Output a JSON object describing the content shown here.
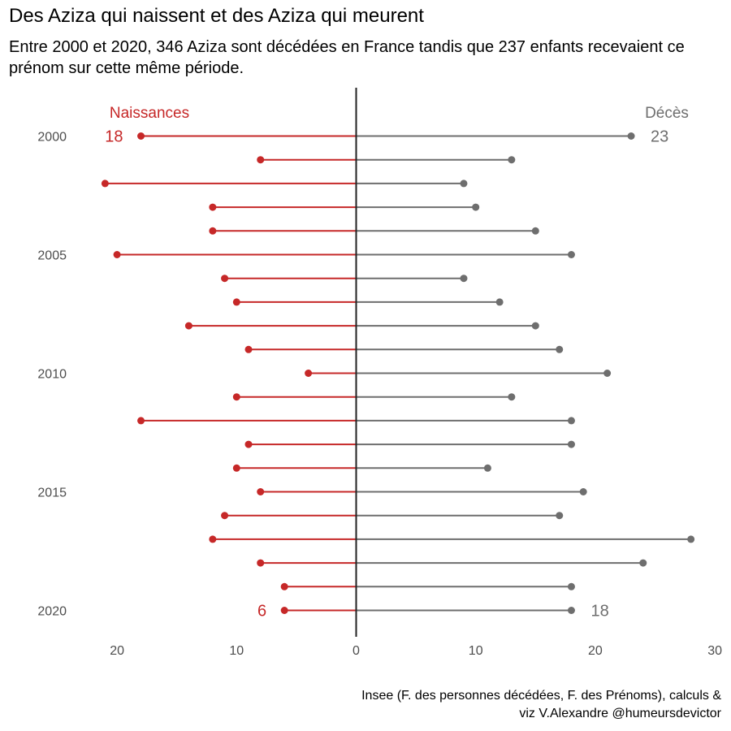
{
  "header": {
    "title": "Des Aziza qui naissent et des Aziza qui meurent",
    "subtitle": "Entre 2000 et 2020, 346 Aziza sont décédées en France tandis que 237 enfants recevaient ce prénom sur cette même période."
  },
  "caption": {
    "line1": "Insee (F. des personnes décédées, F. des Prénoms), calculs &",
    "line2": "viz V.Alexandre @humeursdevictor"
  },
  "colors": {
    "births": "#c62828",
    "deaths": "#6e6e6e",
    "axis": "#222222"
  },
  "chart_data": {
    "type": "bar",
    "orientation": "horizontal-diverging-lollipop",
    "categories": [
      2000,
      2001,
      2002,
      2003,
      2004,
      2005,
      2006,
      2007,
      2008,
      2009,
      2010,
      2011,
      2012,
      2013,
      2014,
      2015,
      2016,
      2017,
      2018,
      2019,
      2020
    ],
    "series": [
      {
        "name": "Naissances",
        "side": "left",
        "values": [
          18,
          8,
          21,
          12,
          12,
          20,
          11,
          10,
          14,
          9,
          4,
          10,
          18,
          9,
          10,
          8,
          11,
          12,
          8,
          6,
          6
        ]
      },
      {
        "name": "Décès",
        "side": "right",
        "values": [
          23,
          13,
          9,
          10,
          15,
          18,
          9,
          12,
          15,
          17,
          21,
          13,
          18,
          18,
          11,
          19,
          17,
          28,
          24,
          18,
          18
        ]
      }
    ],
    "y_tick_labels": [
      "2000",
      "2005",
      "2010",
      "2015",
      "2020"
    ],
    "x_tick_labels": [
      "20",
      "10",
      "0",
      "10",
      "20",
      "30"
    ],
    "x_tick_values": [
      -20,
      -10,
      0,
      10,
      20,
      30
    ],
    "xlim": [
      -20,
      30
    ],
    "legend": {
      "births": "Naissances",
      "deaths": "Décès",
      "placement": "top"
    },
    "annotations": [
      {
        "series": "Naissances",
        "year": 2000,
        "label": "18"
      },
      {
        "series": "Naissances",
        "year": 2020,
        "label": "6"
      },
      {
        "series": "Décès",
        "year": 2000,
        "label": "23"
      },
      {
        "series": "Décès",
        "year": 2020,
        "label": "18"
      }
    ],
    "grid": false
  }
}
